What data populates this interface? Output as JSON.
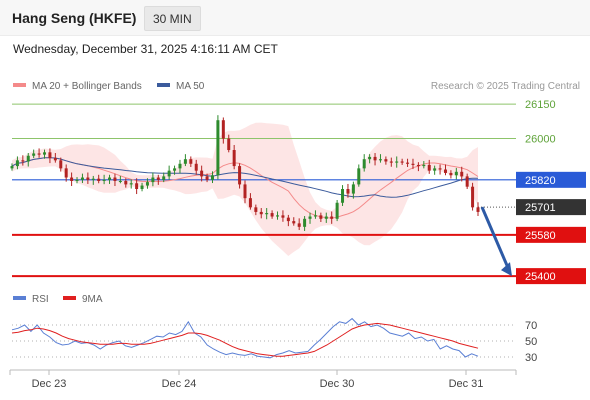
{
  "header": {
    "title": "Hang Seng (HKFE)",
    "timeframe": "30 MIN",
    "datetime": "Wednesday, December 31, 2025 4:16:11 AM CET",
    "credit": "Research © 2025 Trading Central"
  },
  "legend": {
    "ma20": {
      "label": "MA 20 + Bollinger Bands",
      "color": "#f48a8a"
    },
    "ma50": {
      "label": "MA 50",
      "color": "#3b5b9c"
    }
  },
  "rsi_legend": {
    "rsi": {
      "label": "RSI",
      "color": "#5a7fd4"
    },
    "ma9": {
      "label": "9MA",
      "color": "#e02020"
    }
  },
  "chart_data": [
    {
      "type": "candlestick",
      "title": "",
      "x_ticks": [
        "Dec 23",
        "Dec 24",
        "Dec 30",
        "Dec 31"
      ],
      "ylim": [
        25370,
        26190
      ],
      "levels": [
        {
          "value": 26150,
          "label": "26150",
          "style": "thin",
          "color": "#8dc46a"
        },
        {
          "value": 26000,
          "label": "26000",
          "style": "thin",
          "color": "#8dc46a"
        },
        {
          "value": 25820,
          "label": "25820",
          "style": "pivot",
          "color": "#2a5bd7"
        },
        {
          "value": 25701,
          "label": "25701",
          "style": "last",
          "color": "#333333"
        },
        {
          "value": 25580,
          "label": "25580",
          "style": "support",
          "color": "#e01010"
        },
        {
          "value": 25400,
          "label": "25400",
          "style": "support",
          "color": "#e01010"
        }
      ],
      "arrow": {
        "from": 25701,
        "to": 25400,
        "color": "#2d5aa6"
      },
      "close_path": [
        25880,
        25905,
        25900,
        25925,
        25935,
        25930,
        25940,
        25915,
        25905,
        25870,
        25830,
        25815,
        25820,
        25830,
        25820,
        25825,
        25815,
        25820,
        25830,
        25815,
        25815,
        25800,
        25805,
        25780,
        25795,
        25810,
        25830,
        25820,
        25835,
        25860,
        25870,
        25890,
        25910,
        25890,
        25860,
        25835,
        25820,
        25840,
        26080,
        26000,
        25950,
        25880,
        25800,
        25740,
        25700,
        25680,
        25670,
        25675,
        25660,
        25665,
        25655,
        25640,
        25630,
        25615,
        25650,
        25660,
        25665,
        25650,
        25660,
        25650,
        25720,
        25780,
        25760,
        25800,
        25870,
        25910,
        25920,
        25905,
        25910,
        25900,
        25895,
        25900,
        25895,
        25890,
        25885,
        25880,
        25885,
        25860,
        25870,
        25865,
        25850,
        25840,
        25855,
        25835,
        25790,
        25700,
        25680
      ]
    },
    {
      "type": "line",
      "title": "",
      "yticks": [
        70,
        50,
        30
      ],
      "ylim": [
        20,
        85
      ],
      "series": [
        {
          "name": "RSI",
          "color": "#5a7fd4",
          "values": [
            64,
            66,
            70,
            62,
            70,
            60,
            55,
            48,
            45,
            46,
            50,
            47,
            48,
            45,
            40,
            45,
            48,
            50,
            44,
            42,
            45,
            48,
            52,
            56,
            55,
            60,
            58,
            62,
            74,
            60,
            55,
            45,
            40,
            36,
            33,
            35,
            33,
            32,
            34,
            31,
            30,
            29,
            33,
            35,
            38,
            35,
            36,
            37,
            45,
            52,
            60,
            68,
            74,
            72,
            78,
            70,
            74,
            68,
            70,
            66,
            60,
            58,
            56,
            60,
            53,
            55,
            50,
            52,
            40,
            44,
            40,
            38,
            30,
            34,
            31
          ]
        },
        {
          "name": "9MA",
          "color": "#e02020",
          "values": [
            60,
            61,
            63,
            64,
            66,
            65,
            63,
            60,
            56,
            53,
            51,
            49,
            48,
            47,
            46,
            46,
            46,
            47,
            47,
            46,
            46,
            46,
            47,
            49,
            51,
            53,
            55,
            57,
            60,
            60,
            59,
            57,
            54,
            51,
            47,
            43,
            40,
            38,
            36,
            34,
            33,
            32,
            31,
            31,
            32,
            33,
            34,
            35,
            37,
            41,
            45,
            50,
            55,
            60,
            65,
            68,
            70,
            71,
            72,
            71,
            70,
            68,
            66,
            64,
            62,
            60,
            58,
            56,
            54,
            52,
            50,
            47,
            45,
            43,
            41
          ]
        }
      ]
    }
  ]
}
